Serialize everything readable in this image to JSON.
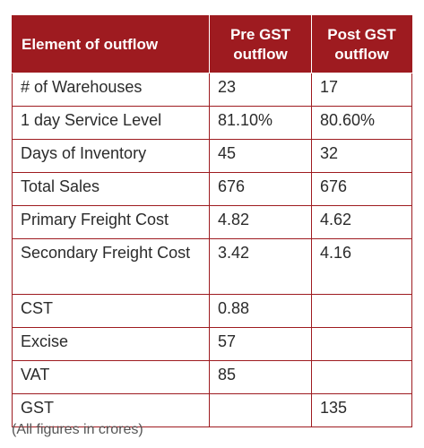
{
  "table": {
    "headers": [
      "Element of outflow",
      "Pre GST outflow",
      "Post GST outflow"
    ],
    "rows": [
      [
        "# of Warehouses",
        "23",
        "17"
      ],
      [
        "1 day Service Level",
        "81.10%",
        "80.60%"
      ],
      [
        "Days of Inventory",
        "45",
        "32"
      ],
      [
        "Total Sales",
        "676",
        "676"
      ],
      [
        "Primary Freight Cost",
        "4.82",
        "4.62"
      ],
      [
        "Secondary Freight Cost",
        "3.42",
        "4.16"
      ],
      [
        "CST",
        "0.88",
        ""
      ],
      [
        "Excise",
        "57",
        ""
      ],
      [
        "VAT",
        "85",
        ""
      ],
      [
        "GST",
        "",
        "135"
      ]
    ]
  },
  "note": "(All figures in crores)",
  "colors": {
    "header_bg": "#9e1b20",
    "header_text": "#ffffff",
    "border": "#9e1b20"
  }
}
